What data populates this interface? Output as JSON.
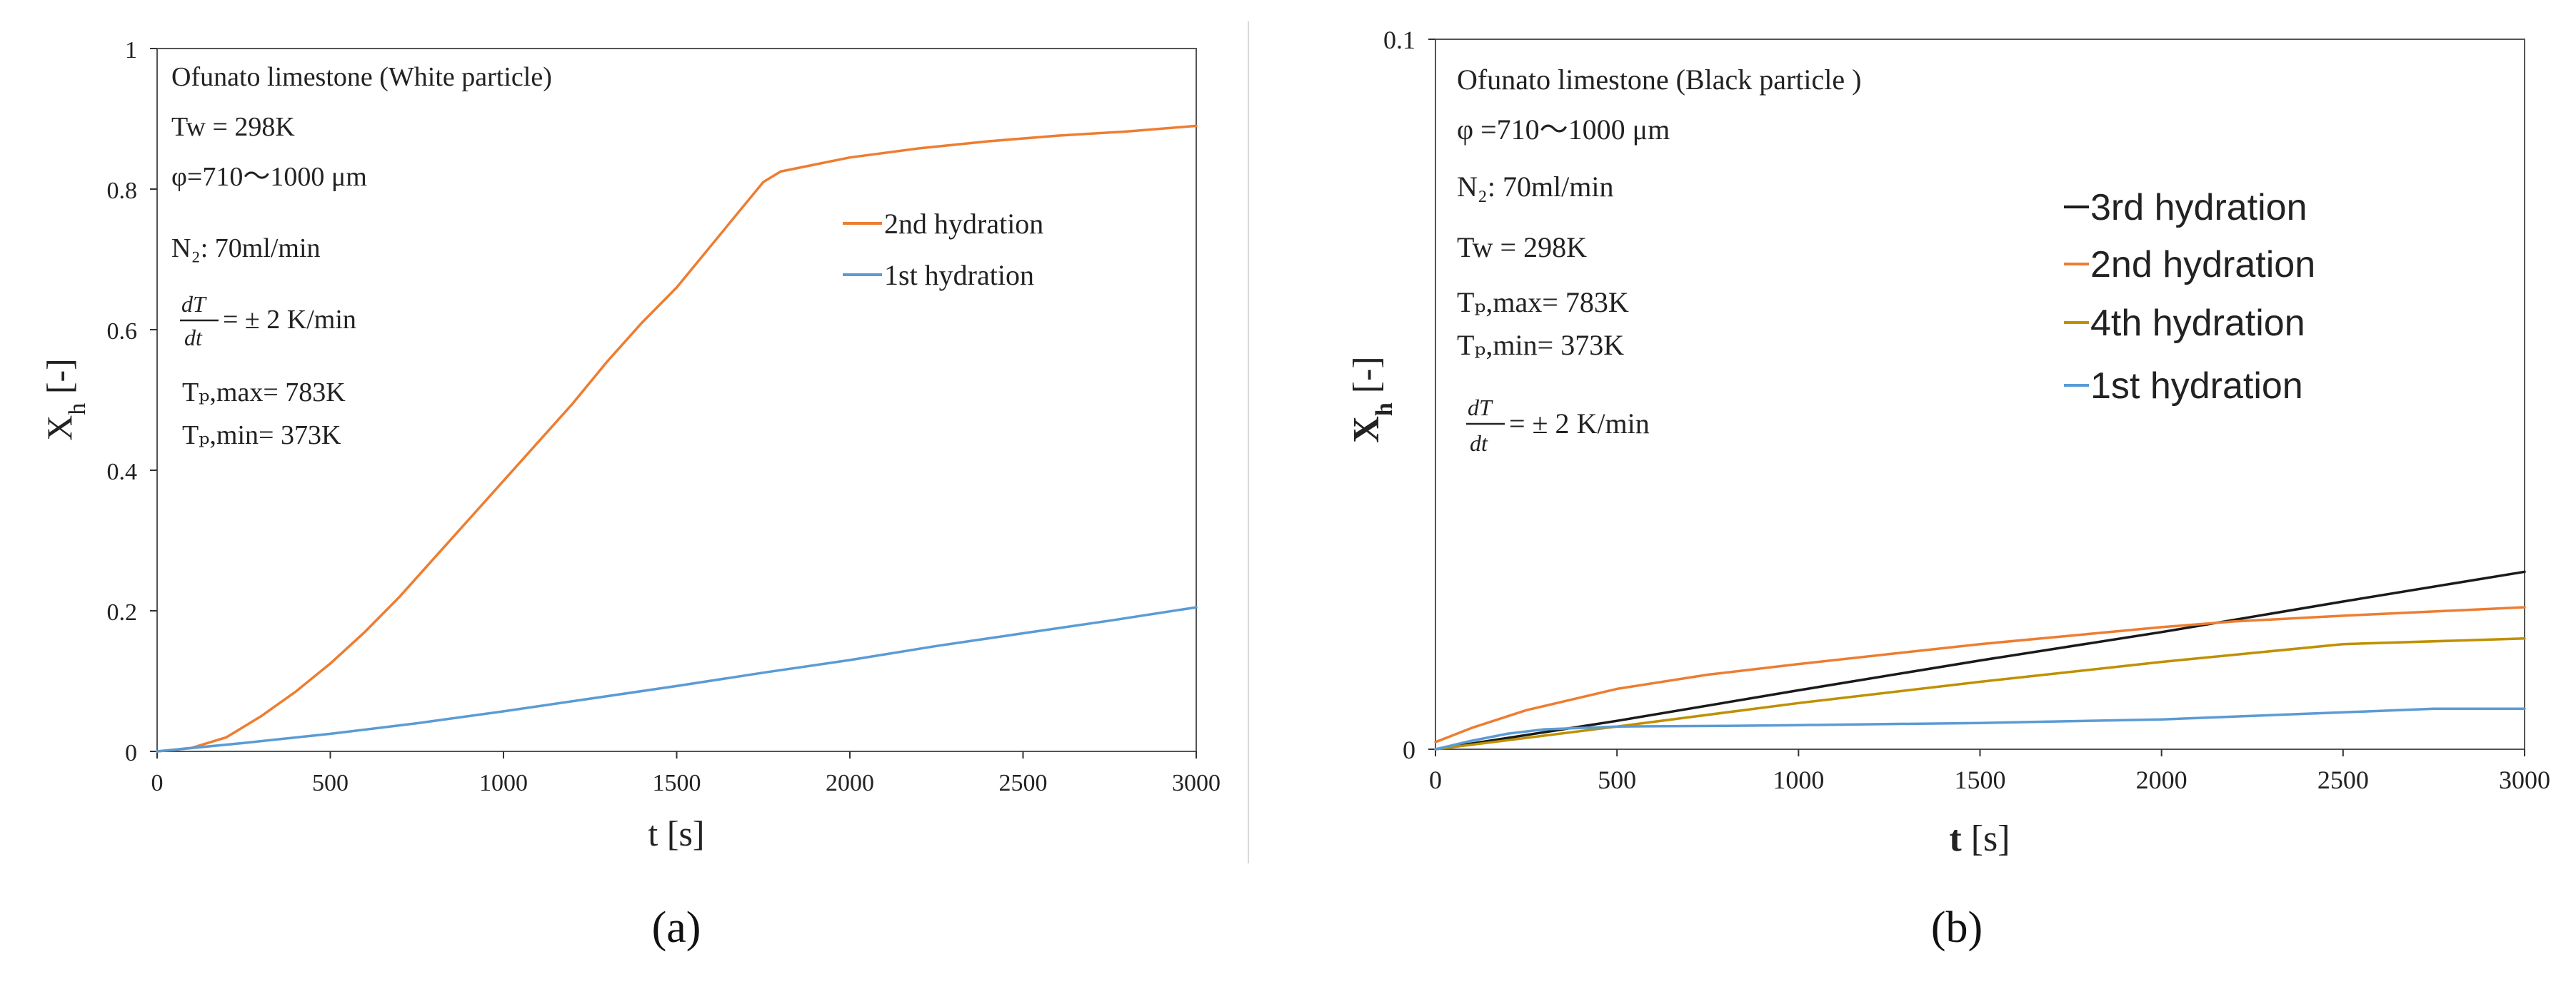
{
  "colors": {
    "orange": "#ED7D31",
    "blue": "#5B9BD5",
    "black": "#1a1a1a",
    "gold": "#BF9000",
    "axis": "#333333",
    "frame": "#555555",
    "divider": "#d9d9d9"
  },
  "chart_data": [
    {
      "type": "line",
      "panel_label": "(a)",
      "xlabel": "t [s]",
      "ylabel": "X_h [-]",
      "xlim": [
        0,
        3000
      ],
      "ylim": [
        0,
        1
      ],
      "x_ticks": [
        "0",
        "500",
        "1000",
        "1500",
        "2000",
        "2500",
        "3000"
      ],
      "y_ticks": [
        "0",
        "0.2",
        "0.4",
        "0.6",
        "0.8",
        "1"
      ],
      "legend_position": "upper-center",
      "annotations": {
        "title": "Ofunato limestone (White particle)",
        "tw": "Tw = 298K",
        "phi": "φ=710〜1000 μm",
        "n2": "N₂: 70ml/min",
        "rate_fraction_numerator": "dT",
        "rate_fraction_denominator": "dt",
        "rate_value": "= ± 2 K/min",
        "tpmax": "Tₚ,max= 783K",
        "tpmin": "Tₚ,min= 373K"
      },
      "series": [
        {
          "name": "2nd hydration",
          "color": "#ED7D31",
          "x": [
            0,
            100,
            200,
            300,
            400,
            500,
            600,
            700,
            800,
            900,
            1000,
            1100,
            1200,
            1300,
            1400,
            1500,
            1600,
            1700,
            1750,
            1800,
            1900,
            2000,
            2200,
            2400,
            2600,
            2800,
            3000
          ],
          "y": [
            0,
            0.005,
            0.02,
            0.05,
            0.085,
            0.125,
            0.17,
            0.22,
            0.275,
            0.33,
            0.385,
            0.44,
            0.495,
            0.555,
            0.61,
            0.66,
            0.72,
            0.78,
            0.81,
            0.825,
            0.835,
            0.845,
            0.858,
            0.868,
            0.876,
            0.882,
            0.89
          ]
        },
        {
          "name": "1st  hydration",
          "color": "#5B9BD5",
          "x": [
            0,
            250,
            500,
            750,
            1000,
            1250,
            1500,
            1750,
            2000,
            2250,
            2500,
            2750,
            3000
          ],
          "y": [
            0,
            0.012,
            0.025,
            0.04,
            0.057,
            0.075,
            0.093,
            0.112,
            0.13,
            0.15,
            0.168,
            0.186,
            0.205
          ]
        }
      ]
    },
    {
      "type": "line",
      "panel_label": "(b)",
      "xlabel": "t [s]",
      "ylabel": "X_h [-]",
      "xlim": [
        0,
        3000
      ],
      "ylim": [
        0,
        0.1
      ],
      "x_ticks": [
        "0",
        "500",
        "1000",
        "1500",
        "2000",
        "2500",
        "3000"
      ],
      "y_ticks": [
        "0",
        "0.1"
      ],
      "legend_position": "upper-right",
      "annotations": {
        "title": "Ofunato limestone (Black particle )",
        "phi": "φ =710〜1000 μm",
        "n2": "N₂: 70ml/min",
        "tw": "Tw = 298K",
        "tpmax": "Tₚ,max= 783K",
        "tpmin": "Tₚ,min= 373K",
        "rate_fraction_numerator": "dT",
        "rate_fraction_denominator": "dt",
        "rate_value": "= ± 2 K/min"
      },
      "series": [
        {
          "name": "3rd hydration",
          "color": "#1a1a1a",
          "x": [
            0,
            500,
            1000,
            1500,
            2000,
            2500,
            3000
          ],
          "y": [
            0,
            0.004,
            0.0083,
            0.0125,
            0.0165,
            0.0208,
            0.025
          ]
        },
        {
          "name": "2nd hydration",
          "color": "#ED7D31",
          "x": [
            0,
            100,
            250,
            500,
            750,
            1000,
            1500,
            2000,
            2200,
            2500,
            3000
          ],
          "y": [
            0.001,
            0.003,
            0.0055,
            0.0085,
            0.0105,
            0.012,
            0.0148,
            0.0172,
            0.018,
            0.0188,
            0.02
          ]
        },
        {
          "name": "4th hydration",
          "color": "#BF9000",
          "x": [
            0,
            500,
            1000,
            1500,
            2000,
            2500,
            3000
          ],
          "y": [
            0,
            0.0032,
            0.0065,
            0.0095,
            0.0123,
            0.0148,
            0.0156
          ]
        },
        {
          "name": "1st  hydration",
          "color": "#5B9BD5",
          "x": [
            0,
            100,
            200,
            300,
            500,
            800,
            1000,
            1500,
            2000,
            2500,
            2750,
            3000
          ],
          "y": [
            0,
            0.0012,
            0.0022,
            0.0028,
            0.0032,
            0.0033,
            0.0034,
            0.0037,
            0.0042,
            0.0052,
            0.0057,
            0.0057
          ]
        }
      ]
    }
  ]
}
